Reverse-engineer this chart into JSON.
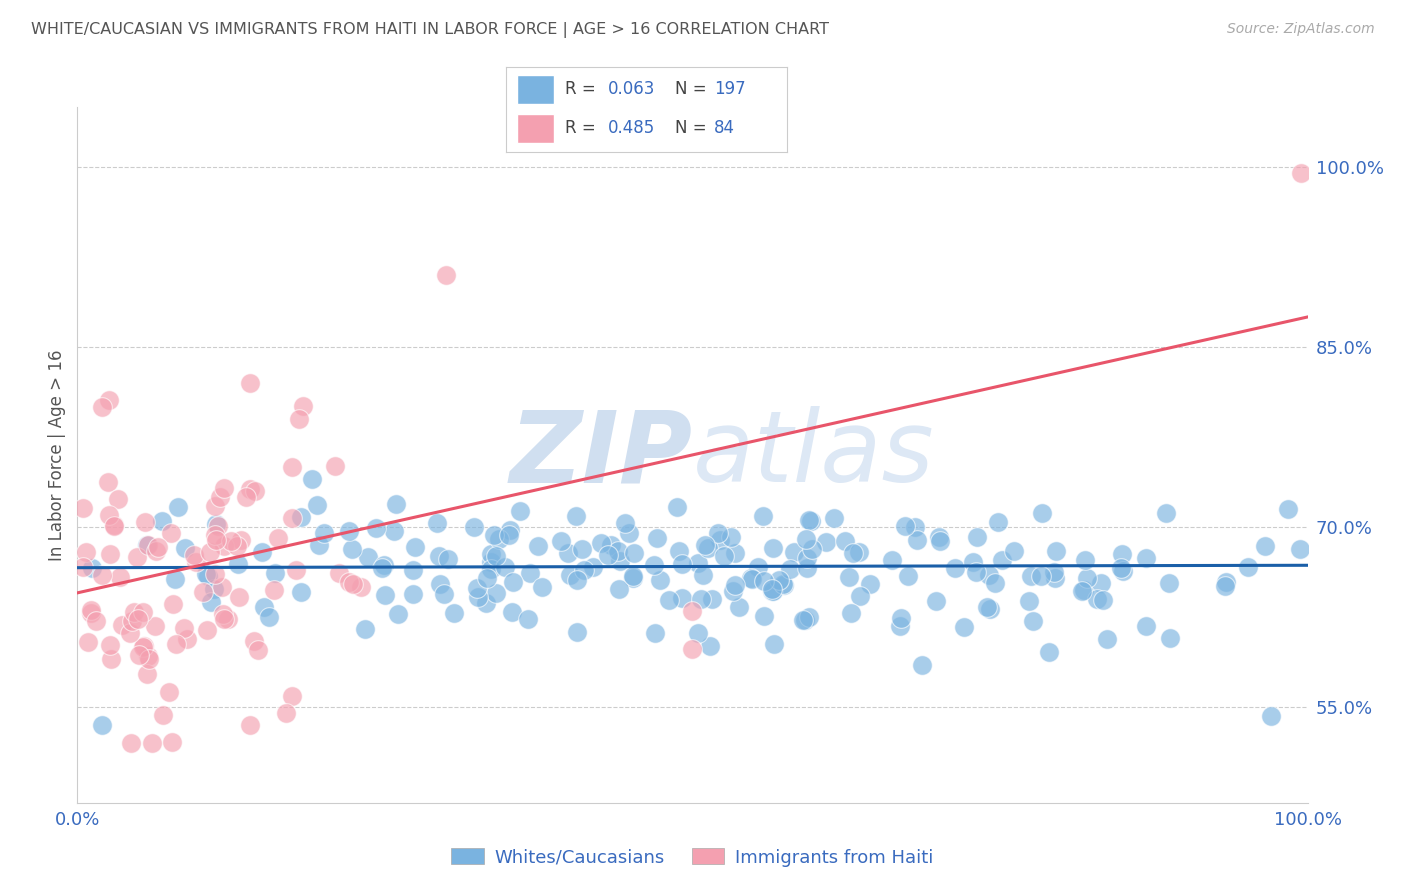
{
  "title": "WHITE/CAUCASIAN VS IMMIGRANTS FROM HAITI IN LABOR FORCE | AGE > 16 CORRELATION CHART",
  "source": "Source: ZipAtlas.com",
  "ylabel": "In Labor Force | Age > 16",
  "xlim": [
    0,
    1
  ],
  "ylim": [
    0.47,
    1.05
  ],
  "yticks": [
    0.55,
    0.7,
    0.85,
    1.0
  ],
  "ytick_labels": [
    "55.0%",
    "70.0%",
    "85.0%",
    "100.0%"
  ],
  "xtick_labels": [
    "0.0%",
    "100.0%"
  ],
  "blue_color": "#7ab3e0",
  "pink_color": "#f4a0b0",
  "blue_line_color": "#1a5fa8",
  "pink_line_color": "#e8556a",
  "blue_R": 0.063,
  "blue_N": 197,
  "pink_R": 0.485,
  "pink_N": 84,
  "text_color": "#3a6bbf",
  "title_color": "#555555",
  "background_color": "#ffffff",
  "watermark_color": "#d0dff0",
  "grid_color": "#cccccc",
  "blue_trend_start": 0.666,
  "blue_trend_end": 0.668,
  "pink_trend_start": 0.645,
  "pink_trend_end": 0.875
}
